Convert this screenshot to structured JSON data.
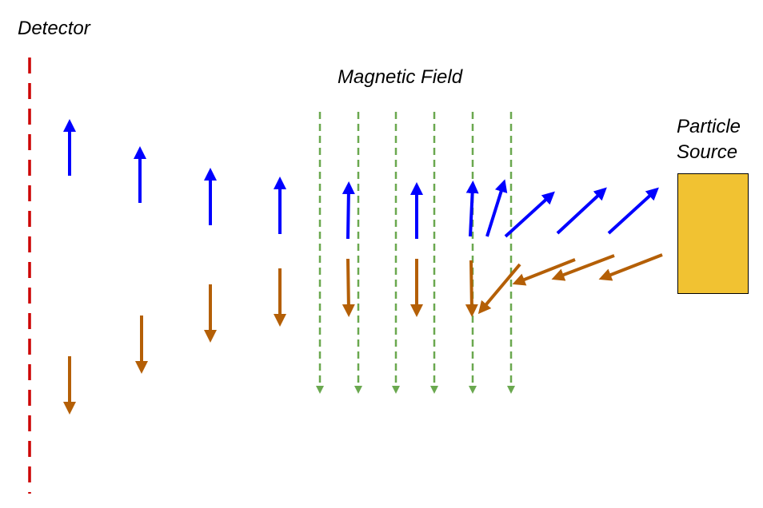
{
  "labels": {
    "detector": "Detector",
    "magnetic_field": "Magnetic Field",
    "particle_source_line1": "Particle",
    "particle_source_line2": "Source"
  },
  "colors": {
    "detector_line": "#cc0000",
    "field_lines": "#6aa84f",
    "positive_particle": "#0000ff",
    "negative_particle": "#b45f06",
    "source_fill": "#f1c232",
    "source_stroke": "#000000"
  },
  "field_line_count": 6,
  "positive_arrow_count": 11,
  "negative_arrow_count": 11
}
